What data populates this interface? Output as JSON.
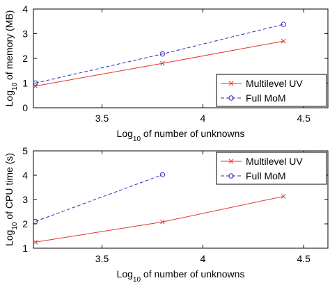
{
  "chart_data": [
    {
      "type": "line",
      "xlabel": [
        "Log",
        "10",
        " of number of unknowns"
      ],
      "ylabel": [
        "Log",
        "10",
        " of memory (MB)"
      ],
      "x": [
        3.17,
        3.8,
        4.4
      ],
      "xlim": [
        3.16,
        4.62
      ],
      "xticks": [
        3.5,
        4,
        4.5
      ],
      "ylim": [
        0,
        4
      ],
      "yticks": [
        0,
        1,
        2,
        3,
        4
      ],
      "legend": "lower right",
      "series": [
        {
          "name": "Multilevel UV",
          "color": "#e8312f",
          "marker": "x",
          "dash": false,
          "values": [
            0.88,
            1.8,
            2.7
          ]
        },
        {
          "name": "Full MoM",
          "color": "#2f2fb8",
          "marker": "o",
          "dash": true,
          "values": [
            1.0,
            2.18,
            3.38
          ]
        }
      ]
    },
    {
      "type": "line",
      "xlabel": [
        "Log",
        "10",
        " of number of unknowns"
      ],
      "ylabel": [
        "Log",
        "10",
        " of CPU time (s)"
      ],
      "x": [
        3.17,
        3.8,
        4.4
      ],
      "xlim": [
        3.16,
        4.62
      ],
      "xticks": [
        3.5,
        4,
        4.5
      ],
      "ylim": [
        1,
        5
      ],
      "yticks": [
        1,
        2,
        3,
        4,
        5
      ],
      "legend": "upper right",
      "series": [
        {
          "name": "Multilevel UV",
          "color": "#e8312f",
          "marker": "x",
          "dash": false,
          "values": [
            1.25,
            2.08,
            3.13
          ]
        },
        {
          "name": "Full MoM",
          "color": "#2f2fb8",
          "marker": "o",
          "dash": true,
          "values": [
            2.1,
            4.02,
            null
          ]
        }
      ]
    }
  ]
}
